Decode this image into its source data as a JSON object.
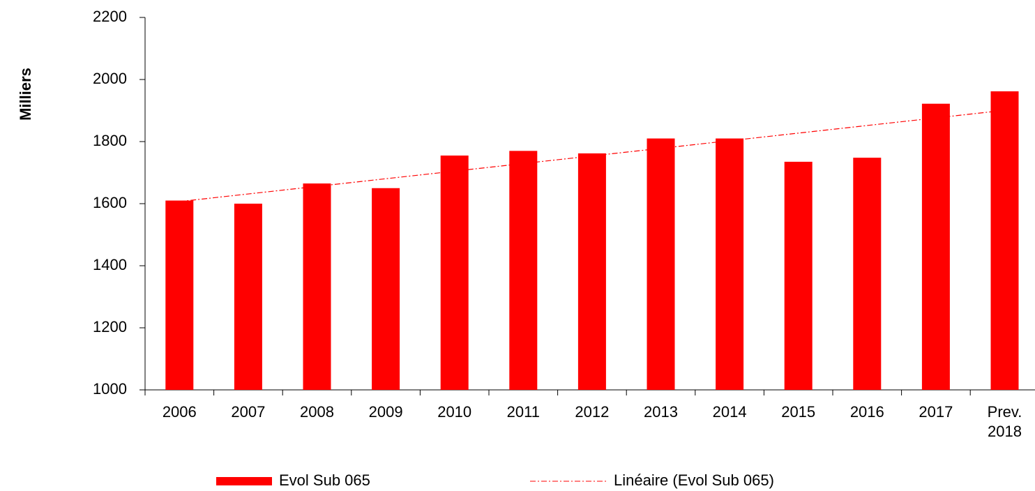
{
  "chart_data": {
    "type": "bar",
    "y_label": "Milliers",
    "categories": [
      "2006",
      "2007",
      "2008",
      "2009",
      "2010",
      "2011",
      "2012",
      "2013",
      "2014",
      "2015",
      "2016",
      "2017",
      "Prev. 2018"
    ],
    "series": [
      {
        "name": "Evol Sub 065",
        "color": "#ff0000",
        "values": [
          1610,
          1600,
          1665,
          1650,
          1755,
          1770,
          1762,
          1810,
          1810,
          1735,
          1748,
          1922,
          1962
        ]
      }
    ],
    "trendline": {
      "name": "Linéaire (Evol Sub 065)",
      "color": "#ff0000"
    },
    "ylim": [
      1000,
      2200
    ],
    "yticks": [
      1000,
      1200,
      1400,
      1600,
      1800,
      2000,
      2200
    ],
    "grid": false
  }
}
